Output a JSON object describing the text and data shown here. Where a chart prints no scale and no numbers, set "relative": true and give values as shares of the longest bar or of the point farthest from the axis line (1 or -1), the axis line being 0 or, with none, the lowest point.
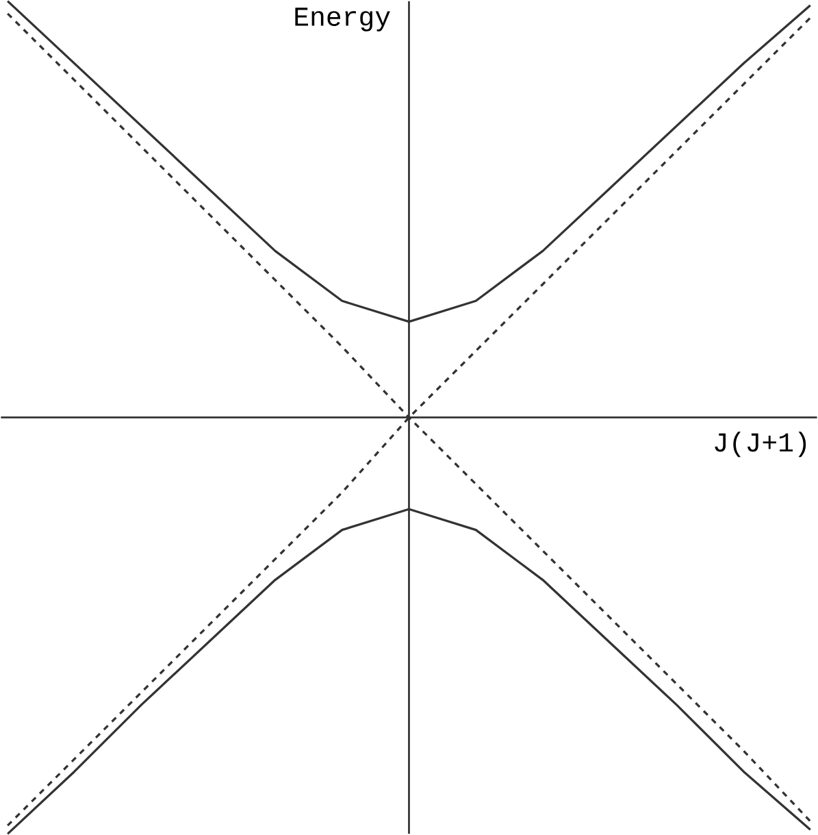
{
  "chart_data": {
    "type": "line",
    "relative": true,
    "xlabel": "J(J+1)",
    "ylabel": "Energy",
    "categories": [
      null,
      null,
      null,
      null,
      null,
      null,
      null,
      null,
      null,
      null,
      null,
      null,
      null
    ],
    "series": [
      {
        "color": "#333333",
        "line_style": "dashed",
        "values": [
          0.97,
          0.81,
          0.65,
          0.49,
          0.33,
          0.17,
          0.0,
          -0.16,
          -0.32,
          -0.48,
          -0.64,
          -0.8,
          -0.97
        ]
      },
      {
        "color": "#333333",
        "line_style": "dashed",
        "values": [
          -0.98,
          -0.82,
          -0.66,
          -0.5,
          -0.34,
          -0.18,
          0.0,
          0.16,
          0.32,
          0.48,
          0.64,
          0.8,
          0.96
        ]
      },
      {
        "color": "#333333",
        "line_style": "solid",
        "values": [
          1.0,
          0.85,
          0.7,
          0.55,
          0.4,
          0.28,
          0.23,
          0.28,
          0.4,
          0.55,
          0.7,
          0.85,
          0.99
        ]
      },
      {
        "color": "#333333",
        "line_style": "solid",
        "values": [
          -1.0,
          -0.85,
          -0.69,
          -0.54,
          -0.39,
          -0.27,
          -0.22,
          -0.27,
          -0.39,
          -0.54,
          -0.69,
          -0.85,
          -0.99
        ]
      }
    ]
  }
}
